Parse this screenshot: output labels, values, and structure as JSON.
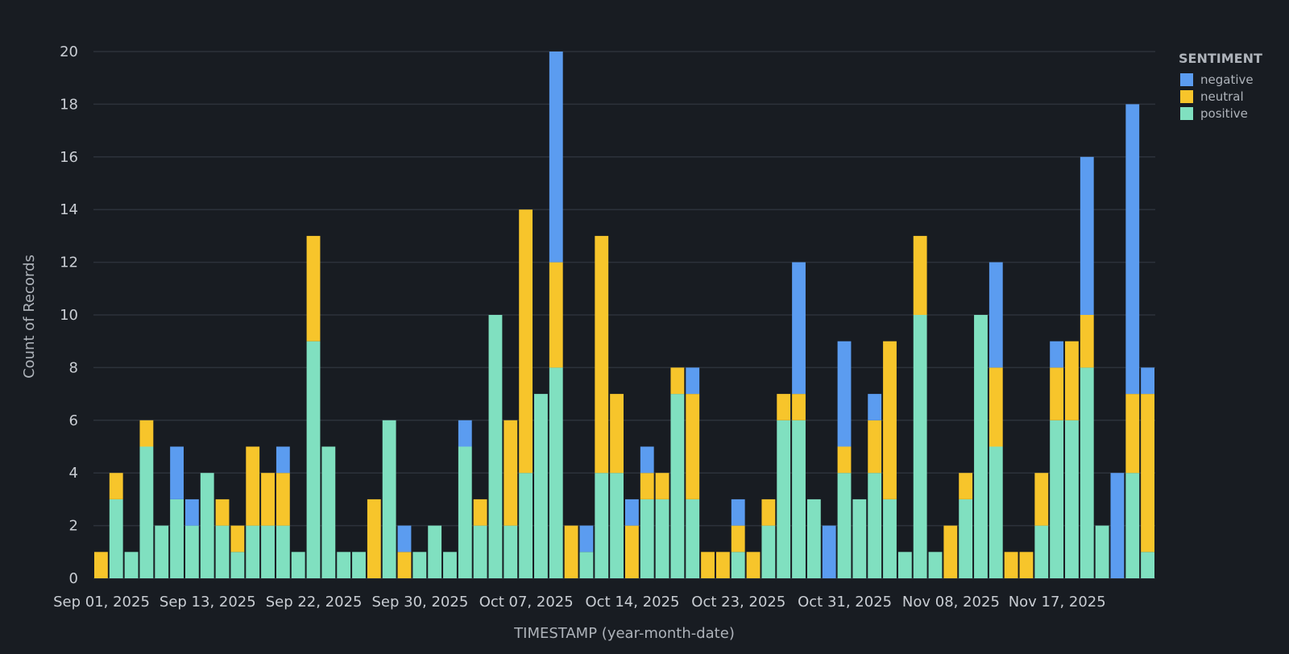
{
  "chart_data": {
    "type": "bar",
    "stacked": true,
    "title": "",
    "xlabel": "TIMESTAMP (year-month-date)",
    "ylabel": "Count of Records",
    "ylim": [
      0,
      20
    ],
    "yticks": [
      0,
      2,
      4,
      6,
      8,
      10,
      12,
      14,
      16,
      18,
      20
    ],
    "xtick_labels": [
      "Sep 01, 2025",
      "Sep 13, 2025",
      "Sep 22, 2025",
      "Sep 30, 2025",
      "Oct 07, 2025",
      "Oct 14, 2025",
      "Oct 23, 2025",
      "Oct 31, 2025",
      "Nov 08, 2025",
      "Nov 17, 2025"
    ],
    "xtick_bar_index": [
      0,
      7,
      14,
      21,
      28,
      35,
      42,
      49,
      56,
      63
    ],
    "grid": true,
    "legend": {
      "title": "SENTIMENT",
      "placement": "top-right",
      "entries": [
        "negative",
        "neutral",
        "positive"
      ]
    },
    "colors": {
      "negative": "#5b9cf0",
      "neutral": "#f7c52b",
      "positive": "#80e0c0",
      "background": "#181c22",
      "grid": "#2c323b"
    },
    "series": [
      {
        "name": "positive",
        "values": [
          0,
          3,
          1,
          5,
          2,
          3,
          2,
          4,
          2,
          1,
          2,
          2,
          2,
          1,
          9,
          5,
          1,
          1,
          0,
          6,
          0,
          1,
          2,
          1,
          5,
          2,
          10,
          2,
          4,
          7,
          8,
          0,
          1,
          4,
          4,
          0,
          3,
          3,
          7,
          3,
          0,
          0,
          1,
          0,
          2,
          6,
          6,
          3,
          0,
          4,
          3,
          4,
          3,
          1,
          10,
          1,
          0,
          3,
          10,
          5,
          0,
          0,
          2,
          6,
          6,
          8,
          2,
          0,
          4,
          1
        ]
      },
      {
        "name": "neutral",
        "values": [
          1,
          1,
          0,
          1,
          0,
          0,
          0,
          0,
          1,
          1,
          3,
          2,
          2,
          0,
          4,
          0,
          0,
          0,
          3,
          0,
          1,
          0,
          0,
          0,
          0,
          1,
          0,
          4,
          10,
          0,
          4,
          2,
          0,
          9,
          3,
          2,
          1,
          1,
          1,
          4,
          1,
          1,
          1,
          1,
          1,
          1,
          1,
          0,
          0,
          1,
          0,
          2,
          6,
          0,
          3,
          0,
          2,
          1,
          0,
          3,
          1,
          1,
          2,
          2,
          3,
          2,
          0,
          0,
          3,
          6
        ]
      },
      {
        "name": "negative",
        "values": [
          0,
          0,
          0,
          0,
          0,
          2,
          1,
          0,
          0,
          0,
          0,
          0,
          1,
          0,
          0,
          0,
          0,
          0,
          0,
          0,
          1,
          0,
          0,
          0,
          1,
          0,
          0,
          0,
          0,
          0,
          8,
          0,
          1,
          0,
          0,
          1,
          1,
          0,
          0,
          1,
          0,
          0,
          1,
          0,
          0,
          0,
          5,
          0,
          2,
          4,
          0,
          1,
          0,
          0,
          0,
          0,
          0,
          0,
          0,
          4,
          0,
          0,
          0,
          1,
          0,
          6,
          0,
          4,
          11,
          1
        ]
      }
    ]
  }
}
